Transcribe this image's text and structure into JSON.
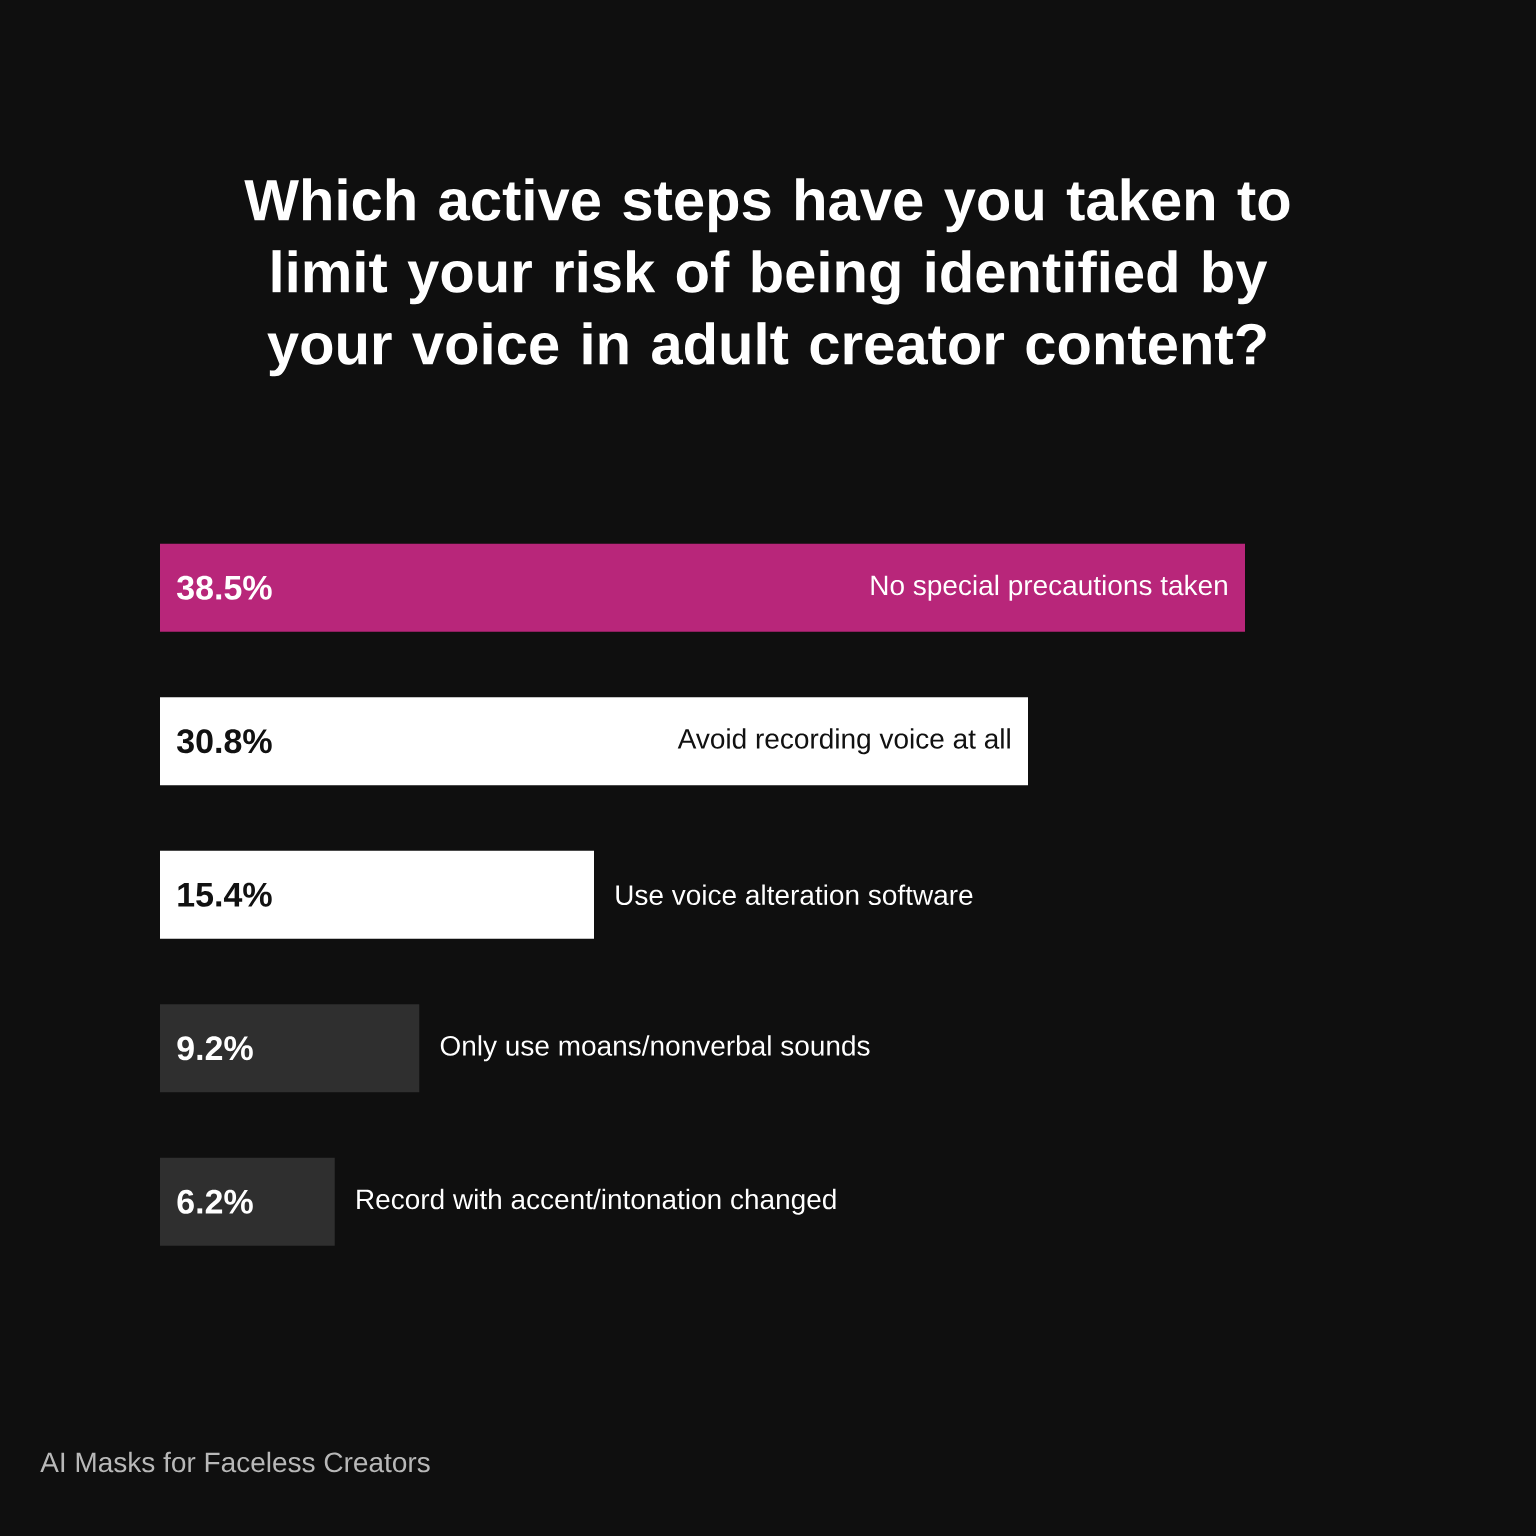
{
  "chart_data": {
    "type": "bar",
    "orientation": "horizontal",
    "title": "Which active steps have you taken to limit your risk of being identified by your voice in adult creator content?",
    "categories": [
      "No special precautions taken",
      "Avoid recording voice at all",
      "Use voice alteration software",
      "Only use moans/nonverbal sounds",
      "Record with accent/intonation changed"
    ],
    "values": [
      38.5,
      30.8,
      15.4,
      9.2,
      6.2
    ],
    "colors": [
      "#b8267a",
      "#ffffff",
      "#ffffff",
      "#2f2f2f",
      "#2f2f2f"
    ],
    "value_labels": [
      "38.5%",
      "30.8%",
      "15.4%",
      "9.2%",
      "6.2%"
    ],
    "tick_labels": "y",
    "annotations": [
      "AI Masks for Faceless Creators"
    ]
  }
}
